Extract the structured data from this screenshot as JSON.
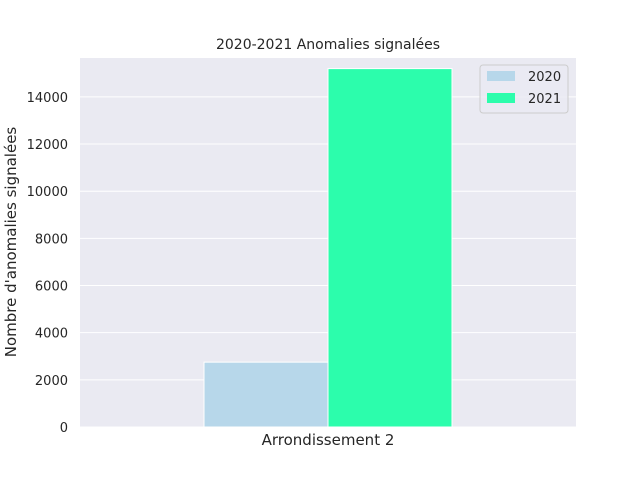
{
  "chart_data": {
    "type": "bar",
    "title": "2020-2021 Anomalies signalées",
    "xlabel": "",
    "ylabel": "Nombre d'anomalies signalées",
    "categories": [
      "Arrondissement 2"
    ],
    "series": [
      {
        "name": "2020",
        "color": "#b7d7ea",
        "values": [
          2750
        ]
      },
      {
        "name": "2021",
        "color": "#2cfdac",
        "values": [
          15200
        ]
      }
    ],
    "ylim": [
      0,
      15650
    ],
    "yticks": [
      0,
      2000,
      4000,
      6000,
      8000,
      10000,
      12000,
      14000
    ],
    "grid": true,
    "legend_position": "top-right",
    "background": "#eaeaf2",
    "grid_color": "#ffffff"
  }
}
